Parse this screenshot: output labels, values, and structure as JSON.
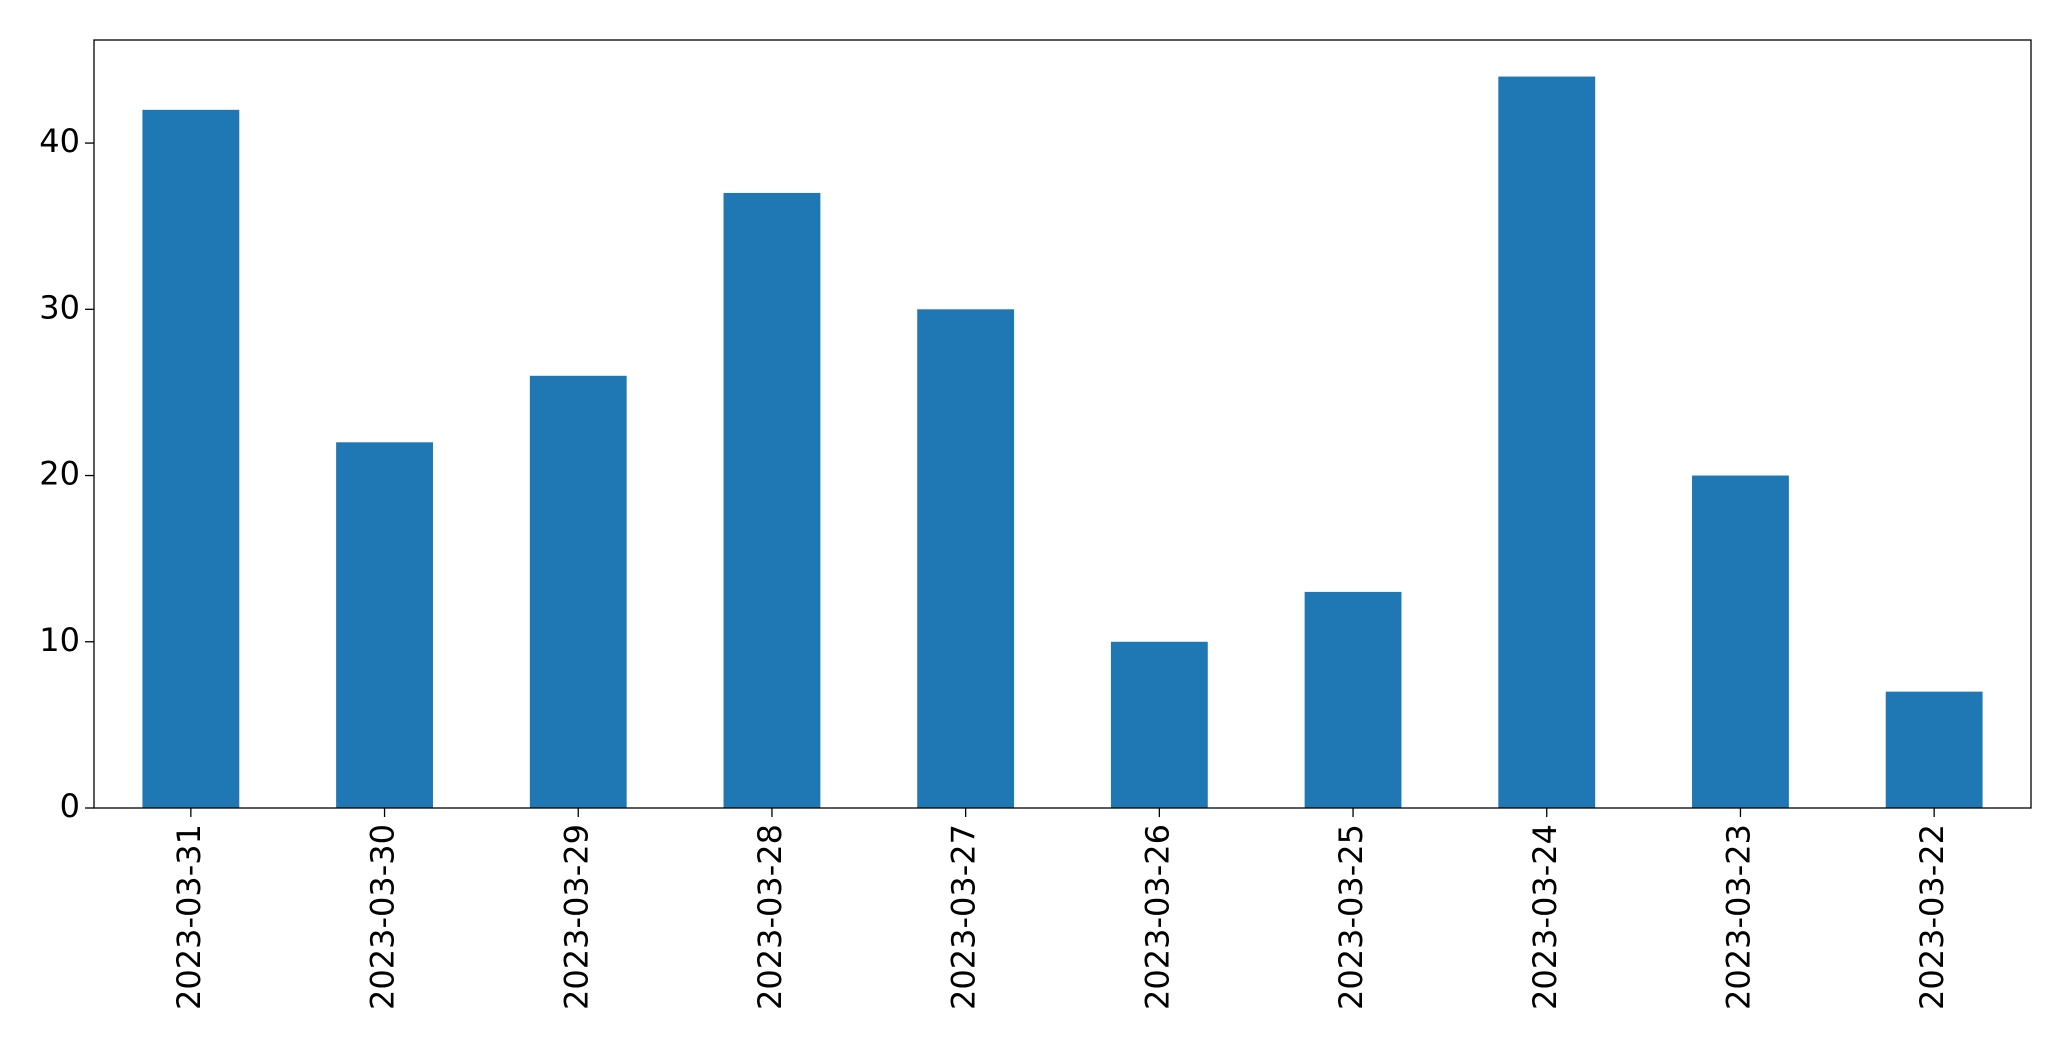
{
  "chart_data": {
    "type": "bar",
    "categories": [
      "2023-03-31",
      "2023-03-30",
      "2023-03-29",
      "2023-03-28",
      "2023-03-27",
      "2023-03-26",
      "2023-03-25",
      "2023-03-24",
      "2023-03-23",
      "2023-03-22"
    ],
    "values": [
      42,
      22,
      26,
      37,
      30,
      10,
      13,
      44,
      20,
      7
    ],
    "color": "#1f77b4",
    "ylim": [
      0,
      46.2
    ],
    "yticks": [
      0,
      10,
      20,
      30,
      40
    ],
    "grid": false
  }
}
